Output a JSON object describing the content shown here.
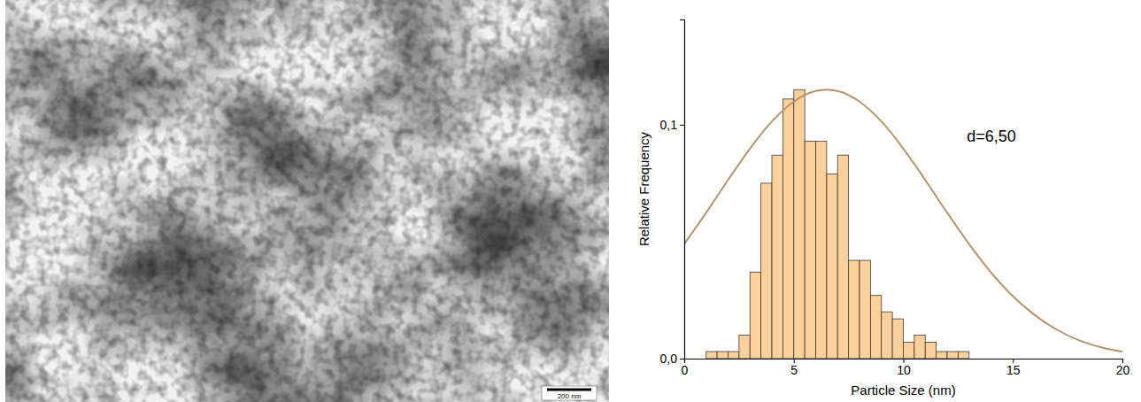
{
  "chart_data": {
    "type": "histogram",
    "x_label": "Particle Size (nm)",
    "y_label": "Relative Frequency",
    "annotations": [
      {
        "text": "d=6,50"
      }
    ],
    "bins": [
      1.0,
      1.5,
      2.0,
      2.5,
      3.0,
      3.5,
      4.0,
      4.5,
      5.0,
      5.5,
      6.0,
      6.5,
      7.0,
      7.5,
      8.0,
      8.5,
      9.0,
      9.5,
      10.0,
      10.5,
      11.0,
      11.5,
      12.0,
      12.5,
      13.0
    ],
    "series": [
      {
        "type": "bar",
        "color": "#fcd09b",
        "values": [
          0.003,
          0.003,
          0.003,
          0.01,
          0.037,
          0.075,
          0.087,
          0.111,
          0.115,
          0.093,
          0.093,
          0.079,
          0.087,
          0.042,
          0.042,
          0.027,
          0.02,
          0.017,
          0.007,
          0.01,
          0.007,
          0.003,
          0.003,
          0.003
        ]
      },
      {
        "type": "line",
        "color": "#b3946c",
        "x": [
          0,
          1,
          2,
          3,
          4,
          5,
          6,
          6.5,
          7,
          8,
          9,
          10,
          11,
          12,
          13,
          14,
          15,
          16,
          17,
          18,
          19,
          20
        ],
        "values": [
          0.049,
          0.0624,
          0.0764,
          0.0898,
          0.1014,
          0.1099,
          0.1144,
          0.115,
          0.1144,
          0.1099,
          0.1014,
          0.0898,
          0.0764,
          0.0624,
          0.049,
          0.0369,
          0.0267,
          0.0186,
          0.0124,
          0.0079,
          0.0049,
          0.0029
        ]
      }
    ],
    "xlim": [
      0,
      20
    ],
    "ylim": [
      0,
      0.145
    ],
    "xticks": [
      0,
      5,
      10,
      15,
      20
    ],
    "yticks": [
      {
        "value": 0,
        "label": "0,0"
      },
      {
        "value": 0.1,
        "label": "0,1"
      }
    ]
  },
  "micrograph": {
    "scale_bar_label": "200 nm"
  }
}
